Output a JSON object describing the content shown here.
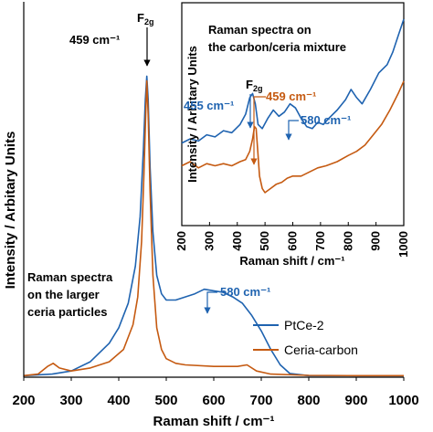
{
  "colors": {
    "ptce": "#1f63b0",
    "ceria": "#c55a11",
    "axis": "#000000"
  },
  "main": {
    "xlabel": "Raman shift / cm⁻¹",
    "ylabel": "Intensity / Arbitary Units",
    "annotation_lines": [
      "Raman spectra",
      "on the larger",
      "ceria particles"
    ],
    "peak_label": "459 cm⁻¹",
    "f2g_main": "F",
    "f2g_sub": "2g",
    "shoulder_label": "580 cm⁻¹"
  },
  "inset": {
    "title_lines": [
      "Raman spectra on",
      "the carbon/ceria mixture"
    ],
    "ylabel": "Intensity / Arbitary Units",
    "xlabel": "Raman shift / cm⁻¹",
    "label_455": "455 cm⁻¹",
    "label_459": "459 cm⁻¹",
    "label_580": "580 cm⁻¹",
    "f2g_main": "F",
    "f2g_sub": "2g"
  },
  "legend": [
    {
      "name": "PtCe-2",
      "color": "#1f63b0"
    },
    {
      "name": "Ceria-carbon",
      "color": "#c55a11"
    }
  ],
  "chart_data": [
    {
      "type": "line",
      "xlim": [
        200,
        1000
      ],
      "ylim": [
        0,
        1
      ],
      "xticks": [
        200,
        300,
        400,
        500,
        600,
        700,
        800,
        900,
        1000
      ],
      "xlabel": "Raman shift / cm⁻¹",
      "ylabel": "Intensity / Arbitary Units",
      "series": [
        {
          "name": "PtCe-2",
          "color": "#1f63b0",
          "x": [
            200,
            260,
            300,
            340,
            380,
            400,
            420,
            435,
            445,
            452,
            456,
            459,
            462,
            466,
            472,
            480,
            490,
            500,
            520,
            540,
            560,
            580,
            600,
            620,
            640,
            660,
            680,
            700,
            720,
            740,
            760,
            800,
            900,
            1000
          ],
          "y": [
            0.005,
            0.01,
            0.02,
            0.05,
            0.11,
            0.16,
            0.24,
            0.36,
            0.52,
            0.74,
            0.9,
            0.975,
            0.9,
            0.68,
            0.47,
            0.33,
            0.27,
            0.25,
            0.25,
            0.26,
            0.27,
            0.285,
            0.28,
            0.275,
            0.26,
            0.24,
            0.2,
            0.15,
            0.09,
            0.04,
            0.012,
            0.005,
            0.005,
            0.005
          ]
        },
        {
          "name": "Ceria-carbon",
          "color": "#c55a11",
          "x": [
            200,
            230,
            250,
            262,
            275,
            300,
            340,
            380,
            410,
            430,
            440,
            448,
            453,
            457,
            459,
            462,
            466,
            472,
            480,
            490,
            500,
            520,
            540,
            600,
            650,
            670,
            690,
            720,
            800,
            900,
            1000
          ],
          "y": [
            0.005,
            0.01,
            0.035,
            0.045,
            0.03,
            0.02,
            0.03,
            0.05,
            0.09,
            0.17,
            0.26,
            0.44,
            0.66,
            0.86,
            0.96,
            0.85,
            0.6,
            0.33,
            0.16,
            0.09,
            0.06,
            0.045,
            0.04,
            0.035,
            0.035,
            0.04,
            0.02,
            0.01,
            0.006,
            0.005,
            0.005
          ]
        }
      ]
    },
    {
      "type": "line",
      "xlim": [
        200,
        1000
      ],
      "ylim": [
        0,
        1
      ],
      "xticks": [
        200,
        300,
        400,
        500,
        600,
        700,
        800,
        900,
        1000
      ],
      "xlabel": "Raman shift / cm⁻¹",
      "ylabel": "Intensity / Arbitary Units",
      "series": [
        {
          "name": "PtCe-2",
          "color": "#1f63b0",
          "x": [
            200,
            230,
            260,
            290,
            320,
            350,
            380,
            410,
            430,
            445,
            455,
            465,
            475,
            490,
            510,
            530,
            550,
            570,
            590,
            610,
            630,
            650,
            670,
            690,
            710,
            730,
            760,
            790,
            810,
            830,
            850,
            880,
            910,
            940,
            960,
            980,
            1000
          ],
          "y": [
            0.36,
            0.38,
            0.37,
            0.4,
            0.39,
            0.42,
            0.41,
            0.45,
            0.5,
            0.58,
            0.6,
            0.55,
            0.45,
            0.43,
            0.48,
            0.52,
            0.49,
            0.51,
            0.55,
            0.53,
            0.48,
            0.44,
            0.43,
            0.46,
            0.45,
            0.48,
            0.52,
            0.57,
            0.62,
            0.58,
            0.55,
            0.62,
            0.7,
            0.74,
            0.8,
            0.88,
            0.96
          ]
        },
        {
          "name": "Ceria-carbon",
          "color": "#c55a11",
          "x": [
            200,
            230,
            260,
            290,
            320,
            350,
            380,
            410,
            430,
            445,
            455,
            462,
            468,
            474,
            480,
            490,
            500,
            520,
            540,
            560,
            580,
            600,
            630,
            660,
            690,
            720,
            760,
            800,
            830,
            860,
            890,
            920,
            950,
            980,
            1000
          ],
          "y": [
            0.25,
            0.27,
            0.24,
            0.26,
            0.25,
            0.26,
            0.25,
            0.27,
            0.28,
            0.32,
            0.38,
            0.44,
            0.43,
            0.32,
            0.2,
            0.14,
            0.12,
            0.14,
            0.16,
            0.17,
            0.19,
            0.2,
            0.2,
            0.22,
            0.24,
            0.25,
            0.27,
            0.3,
            0.32,
            0.35,
            0.4,
            0.45,
            0.52,
            0.6,
            0.66
          ]
        }
      ]
    }
  ]
}
